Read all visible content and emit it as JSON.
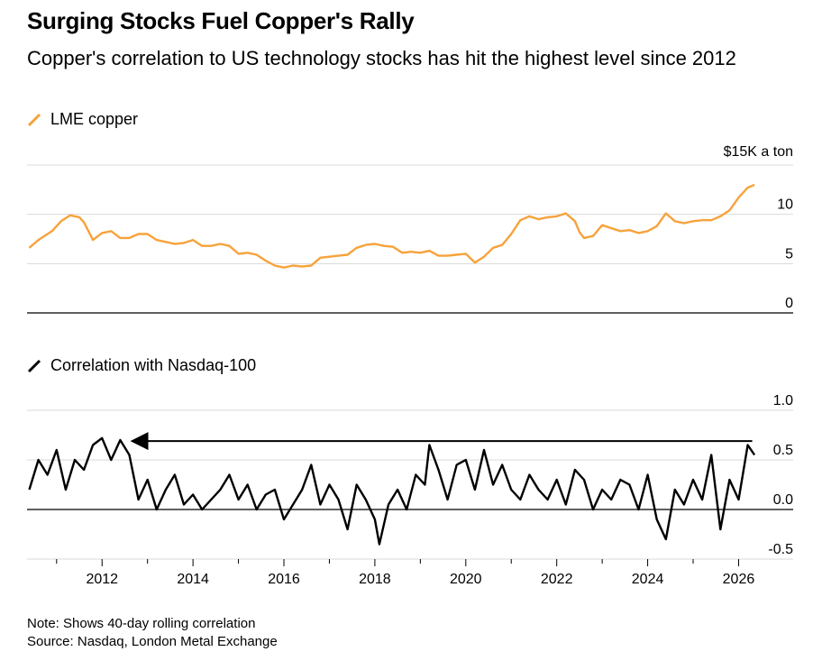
{
  "header": {
    "title": "Surging Stocks Fuel Copper's Rally",
    "subtitle": "Copper's correlation to US technology stocks has hit the highest level since 2012"
  },
  "footer": {
    "note": "Note: Shows 40-day rolling correlation",
    "source": "Source: Nasdaq, London Metal Exchange"
  },
  "colors": {
    "copper": "#f7a23b",
    "correlation": "#000000",
    "grid": "#d9d9d9",
    "axis": "#000000"
  },
  "chart_data": [
    {
      "type": "line",
      "series": [
        {
          "name": "LME copper",
          "x": [
            2010.4,
            2010.6,
            2010.9,
            2011.1,
            2011.3,
            2011.5,
            2011.6,
            2011.8,
            2012.0,
            2012.2,
            2012.4,
            2012.6,
            2012.8,
            2013.0,
            2013.2,
            2013.4,
            2013.6,
            2013.8,
            2014.0,
            2014.2,
            2014.4,
            2014.6,
            2014.8,
            2015.0,
            2015.2,
            2015.4,
            2015.6,
            2015.8,
            2016.0,
            2016.2,
            2016.4,
            2016.6,
            2016.8,
            2017.0,
            2017.2,
            2017.4,
            2017.6,
            2017.8,
            2018.0,
            2018.2,
            2018.4,
            2018.6,
            2018.8,
            2019.0,
            2019.2,
            2019.4,
            2019.6,
            2019.8,
            2020.0,
            2020.2,
            2020.4,
            2020.6,
            2020.8,
            2021.0,
            2021.2,
            2021.4,
            2021.6,
            2021.8,
            2022.0,
            2022.2,
            2022.4,
            2022.5,
            2022.6,
            2022.8,
            2023.0,
            2023.2,
            2023.4,
            2023.6,
            2023.8,
            2024.0,
            2024.2,
            2024.4,
            2024.6,
            2024.8,
            2025.0,
            2025.2,
            2025.4,
            2025.6,
            2025.8,
            2026.0,
            2026.2,
            2026.35
          ],
          "y": [
            6.6,
            7.4,
            8.3,
            9.3,
            9.9,
            9.7,
            9.2,
            7.4,
            8.1,
            8.3,
            7.6,
            7.6,
            8.0,
            8.0,
            7.4,
            7.2,
            7.0,
            7.1,
            7.4,
            6.8,
            6.8,
            7.0,
            6.8,
            6.0,
            6.1,
            5.9,
            5.3,
            4.8,
            4.6,
            4.8,
            4.7,
            4.8,
            5.6,
            5.7,
            5.8,
            5.9,
            6.6,
            6.9,
            7.0,
            6.8,
            6.7,
            6.1,
            6.2,
            6.1,
            6.3,
            5.8,
            5.8,
            5.9,
            6.0,
            5.1,
            5.7,
            6.6,
            6.9,
            8.0,
            9.4,
            9.8,
            9.5,
            9.7,
            9.8,
            10.1,
            9.3,
            8.2,
            7.6,
            7.8,
            8.9,
            8.6,
            8.3,
            8.4,
            8.1,
            8.3,
            8.8,
            10.1,
            9.3,
            9.1,
            9.3,
            9.4,
            9.4,
            9.8,
            10.4,
            11.7,
            12.7,
            13.0
          ]
        }
      ],
      "ylim": [
        0,
        15
      ],
      "yticks": [
        "0",
        "5",
        "10"
      ],
      "unit_label": "$15K a ton",
      "legend": "top-left",
      "grid": true
    },
    {
      "type": "line",
      "series": [
        {
          "name": "Correlation with Nasdaq-100",
          "x": [
            2010.4,
            2010.6,
            2010.8,
            2011.0,
            2011.2,
            2011.4,
            2011.6,
            2011.8,
            2012.0,
            2012.2,
            2012.4,
            2012.6,
            2012.8,
            2013.0,
            2013.2,
            2013.4,
            2013.6,
            2013.8,
            2014.0,
            2014.2,
            2014.4,
            2014.6,
            2014.8,
            2015.0,
            2015.2,
            2015.4,
            2015.6,
            2015.8,
            2016.0,
            2016.2,
            2016.4,
            2016.6,
            2016.8,
            2017.0,
            2017.2,
            2017.4,
            2017.6,
            2017.8,
            2018.0,
            2018.1,
            2018.3,
            2018.5,
            2018.7,
            2018.9,
            2019.1,
            2019.2,
            2019.4,
            2019.6,
            2019.8,
            2020.0,
            2020.2,
            2020.4,
            2020.6,
            2020.8,
            2021.0,
            2021.2,
            2021.4,
            2021.6,
            2021.8,
            2022.0,
            2022.2,
            2022.4,
            2022.6,
            2022.8,
            2023.0,
            2023.2,
            2023.4,
            2023.6,
            2023.8,
            2024.0,
            2024.2,
            2024.4,
            2024.6,
            2024.8,
            2025.0,
            2025.2,
            2025.4,
            2025.6,
            2025.8,
            2026.0,
            2026.2,
            2026.35
          ],
          "y": [
            0.2,
            0.5,
            0.35,
            0.6,
            0.2,
            0.5,
            0.4,
            0.65,
            0.72,
            0.5,
            0.7,
            0.55,
            0.1,
            0.3,
            0.0,
            0.2,
            0.35,
            0.05,
            0.15,
            0.0,
            0.1,
            0.2,
            0.35,
            0.1,
            0.25,
            0.0,
            0.15,
            0.2,
            -0.1,
            0.05,
            0.2,
            0.45,
            0.05,
            0.25,
            0.1,
            -0.2,
            0.25,
            0.1,
            -0.1,
            -0.35,
            0.05,
            0.2,
            0.0,
            0.35,
            0.25,
            0.65,
            0.4,
            0.1,
            0.45,
            0.5,
            0.2,
            0.6,
            0.25,
            0.45,
            0.2,
            0.1,
            0.35,
            0.2,
            0.1,
            0.3,
            0.05,
            0.4,
            0.3,
            0.0,
            0.2,
            0.1,
            0.3,
            0.25,
            0.0,
            0.35,
            -0.1,
            -0.3,
            0.2,
            0.05,
            0.3,
            0.1,
            0.55,
            -0.2,
            0.3,
            0.1,
            0.65,
            0.55
          ]
        }
      ],
      "ylim": [
        -0.5,
        1.0
      ],
      "yticks": [
        "-0.5",
        "0.0",
        "0.5",
        "1.0"
      ],
      "annotation": "arrow from 2026.3 back to 2012.7 at 0.69 marking the highest level since 2012",
      "legend": "top-left",
      "grid": true
    }
  ],
  "xaxis": {
    "ticks": [
      "2012",
      "2014",
      "2016",
      "2018",
      "2020",
      "2022",
      "2024",
      "2026"
    ],
    "range": [
      2010.35,
      2027.2
    ]
  }
}
